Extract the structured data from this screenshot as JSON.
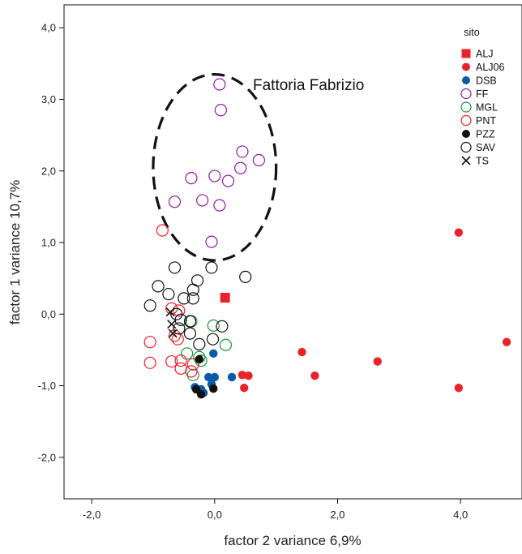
{
  "chart_data": {
    "type": "scatter",
    "title": "",
    "xlabel": "factor 2 variance 6,9%",
    "ylabel": "factor 1 variance 10,7%",
    "xlim": [
      -2.45,
      5.0
    ],
    "ylim": [
      -2.58,
      4.32
    ],
    "xticks": [
      -2.0,
      0.0,
      2.0,
      4.0
    ],
    "xtick_labels": [
      "-2,0",
      "0,0",
      "2,0",
      "4,0"
    ],
    "yticks": [
      -2.0,
      -1.0,
      0.0,
      1.0,
      2.0,
      3.0,
      4.0
    ],
    "ytick_labels": [
      "-2,0",
      "-1,0",
      "0,0",
      "1,0",
      "2,0",
      "3,0",
      "4,0"
    ],
    "grid": false,
    "legend_title": "sito",
    "legend_position": "top-right",
    "annotation": {
      "text": "Fattoria Fabrizio",
      "ellipse": {
        "cx": 0.0,
        "cy": 2.05,
        "rx": 1.0,
        "ry": 1.3
      }
    },
    "series": [
      {
        "name": "ALJ",
        "marker": "square-filled",
        "color": "#e8232a",
        "points": [
          [
            0.17,
            0.23
          ]
        ]
      },
      {
        "name": "ALJ06",
        "marker": "circle-filled",
        "color": "#e8232a",
        "points": [
          [
            3.97,
            1.14
          ],
          [
            4.75,
            -0.39
          ],
          [
            1.42,
            -0.53
          ],
          [
            2.65,
            -0.66
          ],
          [
            1.63,
            -0.86
          ],
          [
            0.45,
            -0.85
          ],
          [
            0.55,
            -0.86
          ],
          [
            0.48,
            -1.03
          ],
          [
            3.97,
            -1.03
          ]
        ]
      },
      {
        "name": "DSB",
        "marker": "circle-filled",
        "color": "#0b5aa8",
        "points": [
          [
            -0.02,
            -0.55
          ],
          [
            -0.1,
            -0.88
          ],
          [
            0.0,
            -0.88
          ],
          [
            0.28,
            -0.88
          ],
          [
            -0.32,
            -1.02
          ],
          [
            -0.22,
            -1.05
          ],
          [
            -0.05,
            -0.98
          ],
          [
            -0.18,
            -1.1
          ]
        ]
      },
      {
        "name": "FF",
        "marker": "circle-open",
        "color": "#8b1fa0",
        "points": [
          [
            0.08,
            3.21
          ],
          [
            0.1,
            2.85
          ],
          [
            0.45,
            2.27
          ],
          [
            0.72,
            2.15
          ],
          [
            0.42,
            2.04
          ],
          [
            0.22,
            1.86
          ],
          [
            -0.38,
            1.9
          ],
          [
            0.0,
            1.93
          ],
          [
            -0.65,
            1.57
          ],
          [
            -0.2,
            1.59
          ],
          [
            0.08,
            1.52
          ],
          [
            -0.05,
            1.01
          ]
        ]
      },
      {
        "name": "MGL",
        "marker": "circle-open",
        "color": "#1a9641",
        "points": [
          [
            -0.38,
            -0.1
          ],
          [
            -0.02,
            -0.16
          ],
          [
            0.18,
            -0.43
          ],
          [
            -0.25,
            -0.6
          ],
          [
            -0.45,
            -0.55
          ],
          [
            -0.22,
            -0.65
          ],
          [
            -0.35,
            -0.85
          ]
        ]
      },
      {
        "name": "PNT",
        "marker": "circle-open",
        "color": "#e8232a",
        "points": [
          [
            -0.85,
            1.17
          ],
          [
            -1.05,
            -0.39
          ],
          [
            -1.05,
            -0.68
          ],
          [
            -0.7,
            -0.66
          ],
          [
            -0.65,
            -0.3
          ],
          [
            -0.6,
            -0.35
          ],
          [
            -0.55,
            -0.65
          ],
          [
            -0.55,
            -0.76
          ],
          [
            -0.7,
            0.08
          ],
          [
            -0.58,
            0.05
          ],
          [
            -0.35,
            -0.7
          ],
          [
            -0.38,
            -0.8
          ]
        ]
      },
      {
        "name": "PZZ",
        "marker": "circle-filled",
        "color": "#111111",
        "points": [
          [
            -0.25,
            -0.63
          ],
          [
            -0.3,
            -1.05
          ],
          [
            -0.22,
            -1.12
          ],
          [
            -0.02,
            -1.04
          ]
        ]
      },
      {
        "name": "SAV",
        "marker": "circle-open",
        "color": "#111111",
        "points": [
          [
            -0.65,
            0.65
          ],
          [
            -0.05,
            0.65
          ],
          [
            0.5,
            0.52
          ],
          [
            -0.28,
            0.47
          ],
          [
            -0.92,
            0.39
          ],
          [
            -0.75,
            0.28
          ],
          [
            -0.35,
            0.34
          ],
          [
            -0.5,
            0.22
          ],
          [
            -0.35,
            0.22
          ],
          [
            -1.05,
            0.12
          ],
          [
            -0.62,
            0.0
          ],
          [
            -0.55,
            -0.08
          ],
          [
            -0.4,
            -0.1
          ],
          [
            -0.58,
            -0.2
          ],
          [
            -0.4,
            -0.27
          ],
          [
            0.12,
            -0.17
          ],
          [
            -0.03,
            -0.35
          ],
          [
            -0.25,
            -0.42
          ]
        ]
      },
      {
        "name": "TS",
        "marker": "x",
        "color": "#111111",
        "points": [
          [
            -0.72,
            0.03
          ],
          [
            -0.7,
            -0.14
          ],
          [
            -0.68,
            -0.27
          ]
        ]
      }
    ]
  }
}
